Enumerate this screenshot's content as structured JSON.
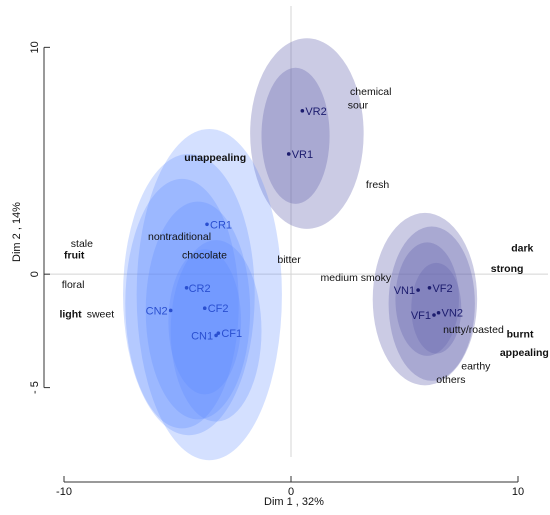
{
  "chart_data": {
    "type": "scatter",
    "xlabel": "Dim 1 , 32%",
    "ylabel": "Dim 2 , 14%",
    "xlim": [
      -10,
      10
    ],
    "ylim": [
      -8.5,
      10.5
    ],
    "x_ticks": [
      {
        "value": -10,
        "label": "-10"
      },
      {
        "value": 0,
        "label": "0"
      },
      {
        "value": 10,
        "label": "10"
      }
    ],
    "y_ticks": [
      {
        "value": -5,
        "label": "- 5"
      },
      {
        "value": 0,
        "label": "0"
      },
      {
        "value": 10,
        "label": "10"
      }
    ],
    "grid": false,
    "reference_lines": {
      "x": 0,
      "y": 0
    },
    "samples": [
      {
        "label": "VR2",
        "x": 0.5,
        "y": 7.2,
        "group": "VR"
      },
      {
        "label": "VR1",
        "x": -0.1,
        "y": 5.3,
        "group": "VR"
      },
      {
        "label": "CR1",
        "x": -3.7,
        "y": 2.2,
        "group": "C"
      },
      {
        "label": "CR2",
        "x": -4.6,
        "y": -0.6,
        "group": "C"
      },
      {
        "label": "CF2",
        "x": -3.8,
        "y": -1.5,
        "group": "C"
      },
      {
        "label": "CN2",
        "x": -5.3,
        "y": -1.6,
        "group": "C"
      },
      {
        "label": "CN1",
        "x": -3.3,
        "y": -2.7,
        "group": "C"
      },
      {
        "label": "CF1",
        "x": -3.2,
        "y": -2.6,
        "group": "C"
      },
      {
        "label": "VN1",
        "x": 5.6,
        "y": -0.7,
        "group": "V"
      },
      {
        "label": "VF2",
        "x": 6.1,
        "y": -0.6,
        "group": "V"
      },
      {
        "label": "VF1",
        "x": 6.3,
        "y": -1.8,
        "group": "V"
      },
      {
        "label": "VN2",
        "x": 6.5,
        "y": -1.7,
        "group": "V"
      }
    ],
    "confidence_ellipses": [
      {
        "group": "VR",
        "cx": 0.7,
        "cy": 6.2,
        "rx": 2.5,
        "ry": 4.2
      },
      {
        "group": "VR",
        "cx": 0.2,
        "cy": 6.1,
        "rx": 1.5,
        "ry": 3.0
      },
      {
        "group": "C",
        "cx": -3.6,
        "cy": -0.9,
        "rx": 3.2,
        "ry": 7.3
      },
      {
        "group": "C",
        "cx": -4.5,
        "cy": -0.9,
        "rx": 2.9,
        "ry": 6.2
      },
      {
        "group": "C",
        "cx": -4.8,
        "cy": -1.3,
        "rx": 2.5,
        "ry": 5.5
      },
      {
        "group": "C",
        "cx": -4.1,
        "cy": -1.6,
        "rx": 2.3,
        "ry": 4.8
      },
      {
        "group": "C",
        "cx": -3.3,
        "cy": -2.5,
        "rx": 2.0,
        "ry": 4.0
      },
      {
        "group": "C",
        "cx": -3.8,
        "cy": -2.1,
        "rx": 1.6,
        "ry": 3.2
      },
      {
        "group": "V",
        "cx": 5.9,
        "cy": -1.1,
        "rx": 2.3,
        "ry": 3.8
      },
      {
        "group": "V",
        "cx": 6.2,
        "cy": -1.3,
        "rx": 1.9,
        "ry": 3.4
      },
      {
        "group": "V",
        "cx": 6.0,
        "cy": -1.1,
        "rx": 1.4,
        "ry": 2.5
      },
      {
        "group": "V",
        "cx": 6.4,
        "cy": -1.5,
        "rx": 1.1,
        "ry": 2.0
      }
    ],
    "attributes": [
      {
        "label": "chemical",
        "x": 2.6,
        "y": 7.9,
        "bold": false
      },
      {
        "label": "sour",
        "x": 2.5,
        "y": 7.3,
        "bold": false
      },
      {
        "label": "unappealing",
        "x": -4.7,
        "y": 5.0,
        "bold": true
      },
      {
        "label": "fresh",
        "x": 3.3,
        "y": 3.8,
        "bold": false
      },
      {
        "label": "nontraditional",
        "x": -6.3,
        "y": 1.5,
        "bold": false
      },
      {
        "label": "chocolate",
        "x": -4.8,
        "y": 0.7,
        "bold": false
      },
      {
        "label": "bitter",
        "x": -0.6,
        "y": 0.5,
        "bold": false
      },
      {
        "label": "stale",
        "x": -9.7,
        "y": 1.2,
        "bold": false
      },
      {
        "label": "fruit",
        "x": -10.0,
        "y": 0.7,
        "bold": true
      },
      {
        "label": "floral",
        "x": -10.1,
        "y": -0.6,
        "bold": false
      },
      {
        "label": "light",
        "x": -10.2,
        "y": -1.9,
        "bold": true
      },
      {
        "label": "sweet",
        "x": -9.0,
        "y": -1.9,
        "bold": false
      },
      {
        "label": "medium smoky",
        "x": 1.3,
        "y": -0.3,
        "bold": false
      },
      {
        "label": "dark",
        "x": 9.7,
        "y": 1.0,
        "bold": true
      },
      {
        "label": "strong",
        "x": 8.8,
        "y": 0.1,
        "bold": true
      },
      {
        "label": "nutty/roasted",
        "x": 6.7,
        "y": -2.6,
        "bold": false
      },
      {
        "label": "burnt",
        "x": 9.5,
        "y": -2.8,
        "bold": true
      },
      {
        "label": "appealing",
        "x": 9.2,
        "y": -3.6,
        "bold": true
      },
      {
        "label": "earthy",
        "x": 7.5,
        "y": -4.2,
        "bold": false
      },
      {
        "label": "others",
        "x": 6.4,
        "y": -4.8,
        "bold": false
      }
    ]
  },
  "colors": {
    "blue_fill": "#5a86ff",
    "purple_fill": "#6868b0",
    "point_purple": "#1c1c6e",
    "point_blue": "#2a4fd0",
    "axis": "#333333",
    "reference_line": "#d4d4d4",
    "text": "#111111"
  }
}
